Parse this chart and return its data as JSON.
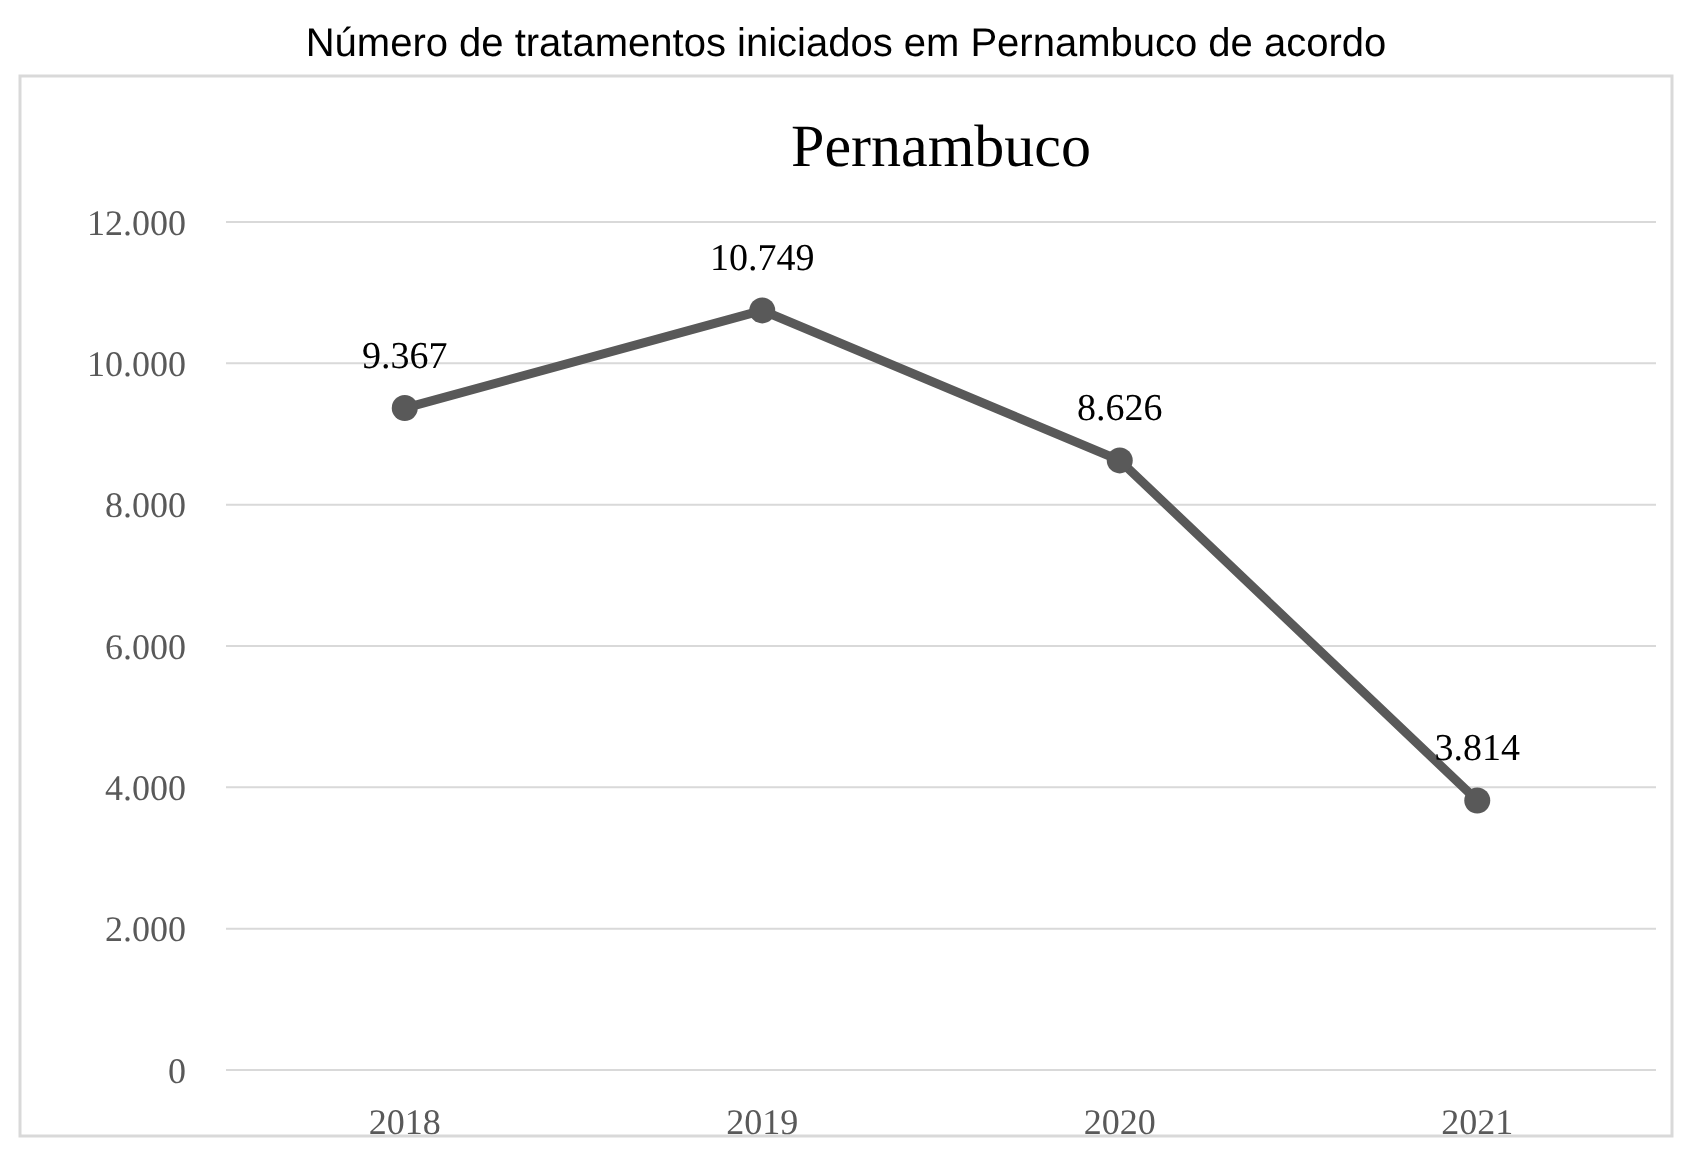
{
  "chart_data": {
    "type": "line",
    "title": "Pernambuco",
    "annotations": [
      "Número de tratamentos iniciados em Pernambuco de acordo"
    ],
    "categories": [
      "2018",
      "2019",
      "2020",
      "2021"
    ],
    "series": [
      {
        "color": "#595959",
        "values": [
          9367,
          10749,
          8626,
          3814
        ],
        "value_labels": [
          "9.367",
          "10.749",
          "8.626",
          "3.814"
        ]
      }
    ],
    "ylim": [
      0,
      12000
    ],
    "yticks": [
      {
        "value": 0,
        "label": "0"
      },
      {
        "value": 2000,
        "label": "2.000"
      },
      {
        "value": 4000,
        "label": "4.000"
      },
      {
        "value": 6000,
        "label": "6.000"
      },
      {
        "value": 8000,
        "label": "8.000"
      },
      {
        "value": 10000,
        "label": "10.000"
      },
      {
        "value": 12000,
        "label": "12.000"
      }
    ],
    "grid": "y",
    "marker": "circle",
    "line_style": "solid"
  }
}
